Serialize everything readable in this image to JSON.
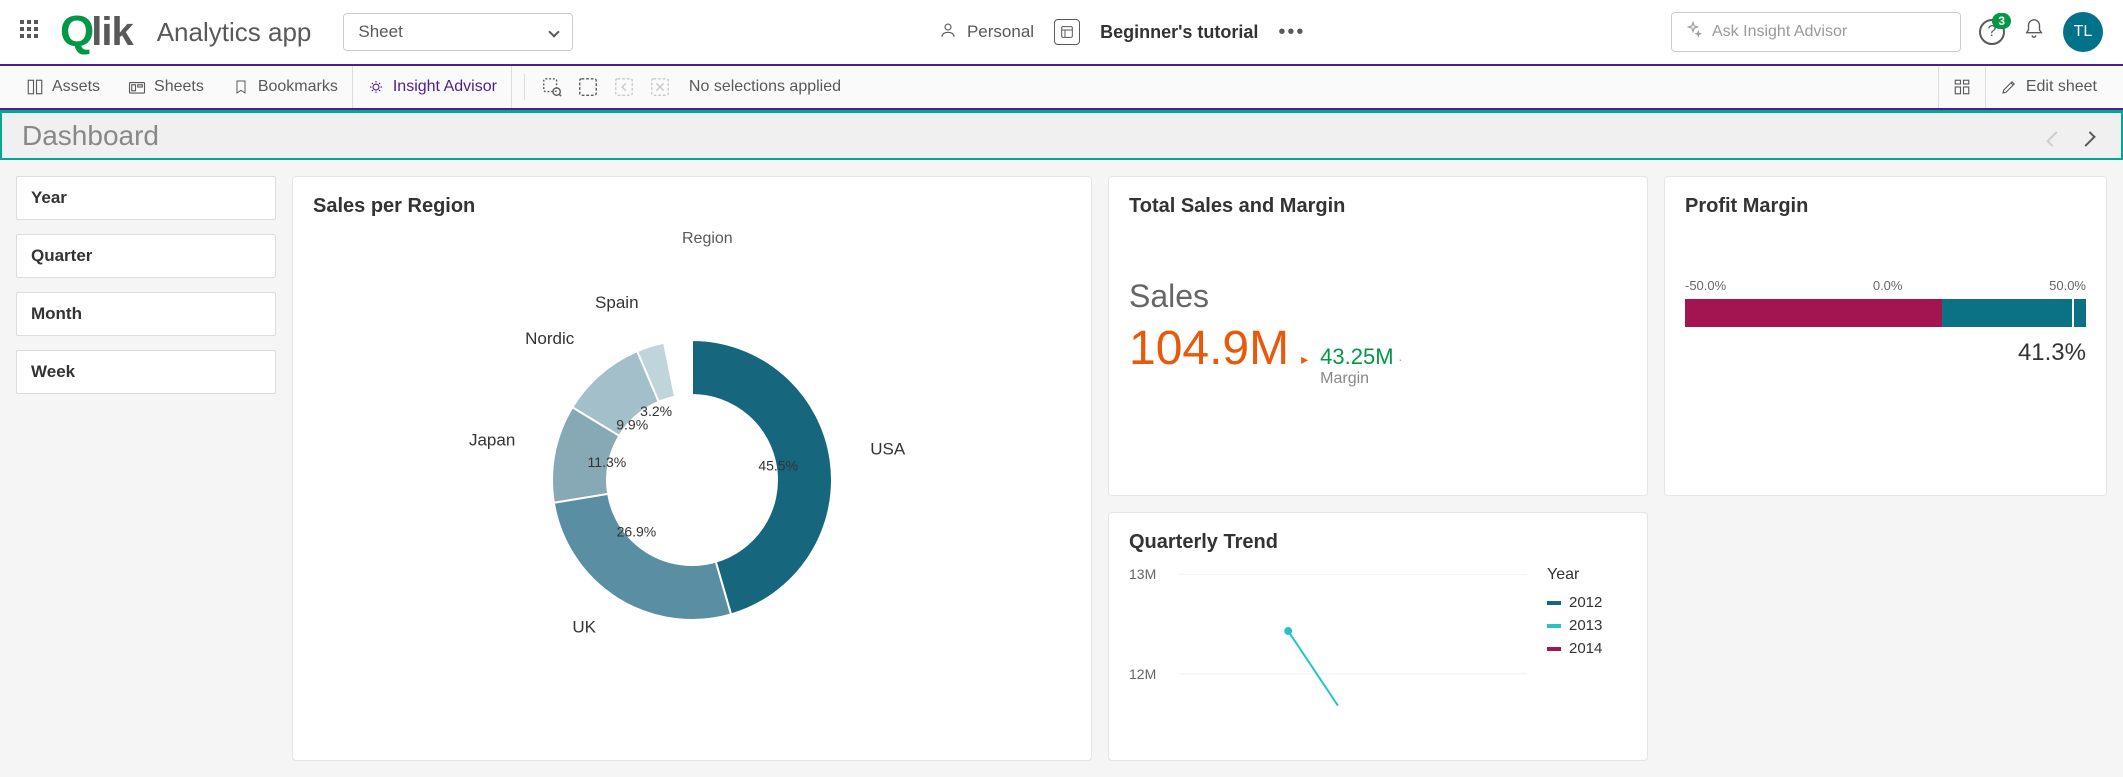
{
  "header": {
    "app_name": "Analytics app",
    "sheet_selector": "Sheet",
    "personal_label": "Personal",
    "tutorial_label": "Beginner's tutorial",
    "ask_placeholder": "Ask Insight Advisor",
    "help_badge": "3",
    "avatar_initials": "TL"
  },
  "toolbar": {
    "assets": "Assets",
    "sheets": "Sheets",
    "bookmarks": "Bookmarks",
    "insight": "Insight Advisor",
    "no_selections": "No selections applied",
    "edit_sheet": "Edit sheet"
  },
  "dashboard": {
    "title": "Dashboard"
  },
  "filters": [
    "Year",
    "Quarter",
    "Month",
    "Week"
  ],
  "donut": {
    "title": "Sales per Region",
    "legend_header": "Region",
    "type": "donut",
    "segments": [
      {
        "label": "USA",
        "pct": 45.5,
        "pct_label": "45.5%",
        "color": "#16667e"
      },
      {
        "label": "UK",
        "pct": 26.9,
        "pct_label": "26.9%",
        "color": "#5a8ea3"
      },
      {
        "label": "Japan",
        "pct": 11.3,
        "pct_label": "11.3%",
        "color": "#87a8b5"
      },
      {
        "label": "Nordic",
        "pct": 9.9,
        "pct_label": "9.9%",
        "color": "#a2bfca"
      },
      {
        "label": "Spain",
        "pct": 3.2,
        "pct_label": "3.2%",
        "color": "#c0d4db"
      }
    ],
    "inner_radius": 85,
    "outer_radius": 140,
    "background": "#ffffff",
    "label_color": "#333333",
    "label_fontsize": 14,
    "outer_label_fontsize": 17
  },
  "kpi": {
    "title": "Total Sales and Margin",
    "label": "Sales",
    "value": "104.9M",
    "value_color": "#e8590c",
    "side_value": "43.25M",
    "side_label": "Margin",
    "side_color": "#009845"
  },
  "profit_margin": {
    "title": "Profit Margin",
    "scale_left": "-50.0%",
    "scale_mid": "0.0%",
    "scale_right": "50.0%",
    "value": "41.3%",
    "value_pct_of_bar": 36,
    "bar_bg_color": "#a31551",
    "bar_fg_color": "#0b7285"
  },
  "trend": {
    "title": "Quarterly Trend",
    "type": "line",
    "y_labels": [
      "13M",
      "12M"
    ],
    "ylim": [
      11500000,
      13500000
    ],
    "legend_title": "Year",
    "series": [
      {
        "name": "2012",
        "color": "#16667e"
      },
      {
        "name": "2013",
        "color": "#24c4c4"
      },
      {
        "name": "2014",
        "color": "#a31551"
      }
    ],
    "visible_points": {
      "series": "2013",
      "points": [
        [
          1,
          12300000
        ],
        [
          1.5,
          11700000
        ]
      ]
    }
  }
}
